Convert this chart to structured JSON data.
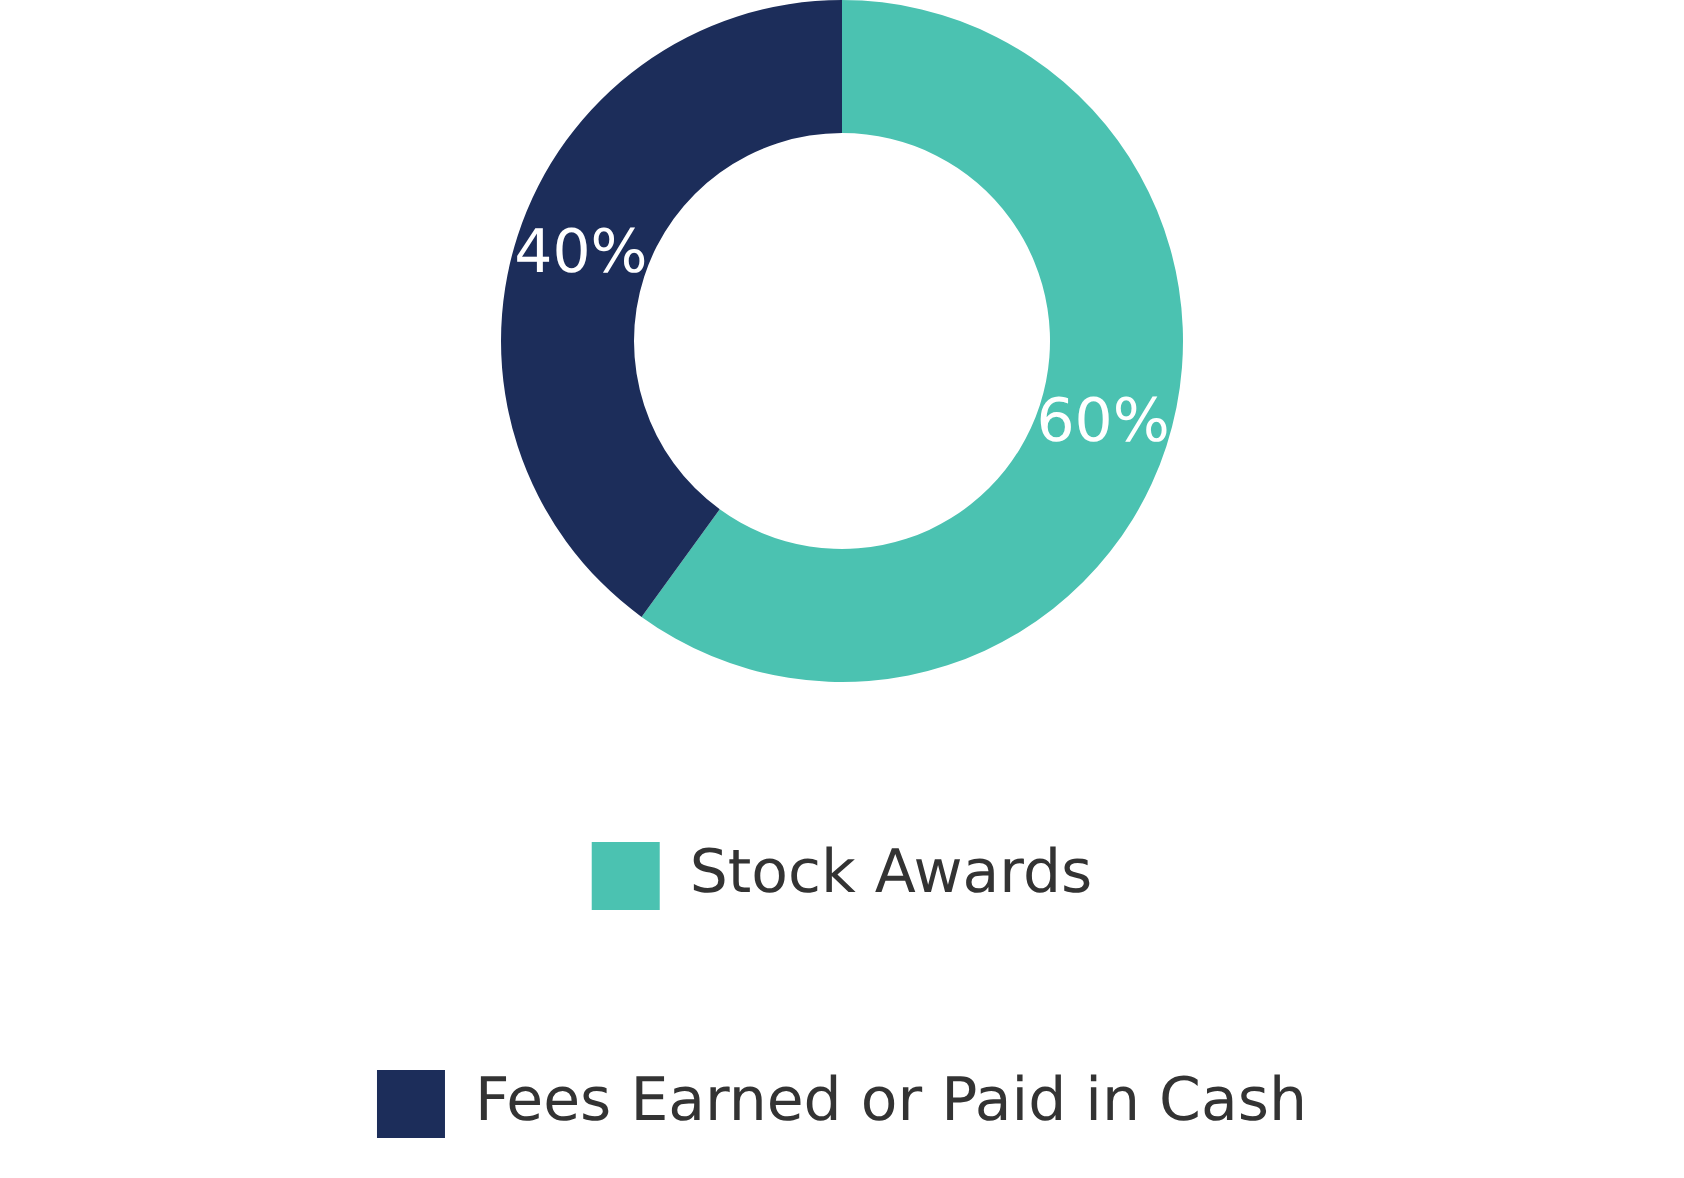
{
  "chart_data": {
    "type": "donut",
    "categories": [
      "Stock Awards",
      "Fees Earned or Paid in Cash"
    ],
    "values": [
      60,
      40
    ],
    "colors": [
      "#4bc2b1",
      "#1c2d5a"
    ],
    "value_labels": [
      "60%",
      "40%"
    ],
    "legend": "bottom"
  }
}
